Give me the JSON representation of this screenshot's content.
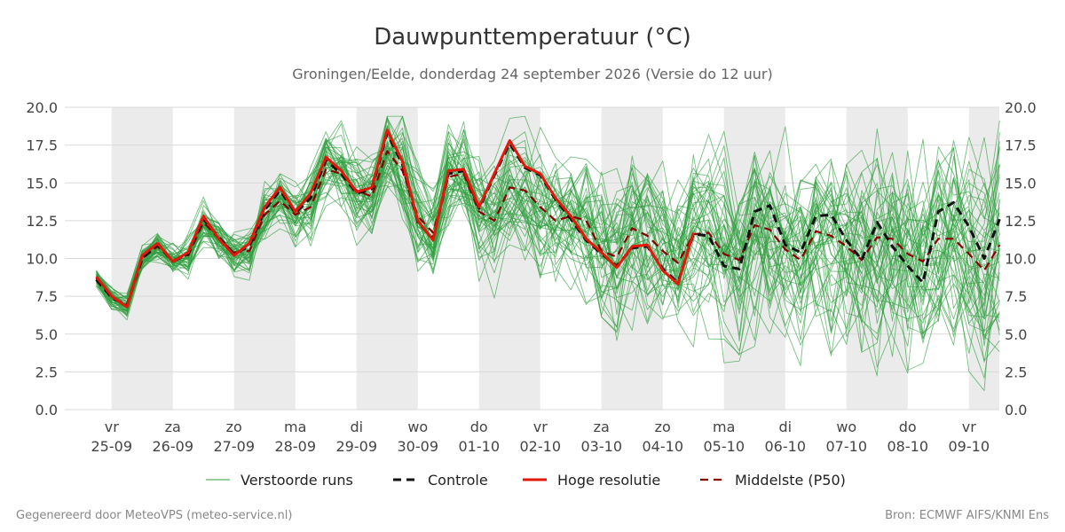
{
  "chart_data": {
    "type": "line",
    "title": "Dauwpunttemperatuur (°C)",
    "subtitle": "Groningen/Eelde, donderdag 24 september 2026 (Versie do 12 uur)",
    "ylim": [
      0,
      20
    ],
    "yticks": [
      "0.0",
      "2.5",
      "5.0",
      "7.5",
      "10.0",
      "12.5",
      "15.0",
      "17.5",
      "20.0"
    ],
    "grid": true,
    "x_unit_note": "x in dagen vanaf eerste tijdstap (stap 0.25)",
    "xticks": [
      {
        "day": "vr",
        "date": "25-09"
      },
      {
        "day": "za",
        "date": "26-09"
      },
      {
        "day": "zo",
        "date": "27-09"
      },
      {
        "day": "ma",
        "date": "28-09"
      },
      {
        "day": "di",
        "date": "29-09"
      },
      {
        "day": "wo",
        "date": "30-09"
      },
      {
        "day": "do",
        "date": "01-10"
      },
      {
        "day": "vr",
        "date": "02-10"
      },
      {
        "day": "za",
        "date": "03-10"
      },
      {
        "day": "zo",
        "date": "04-10"
      },
      {
        "day": "ma",
        "date": "05-10"
      },
      {
        "day": "di",
        "date": "06-10"
      },
      {
        "day": "wo",
        "date": "07-10"
      },
      {
        "day": "do",
        "date": "08-10"
      },
      {
        "day": "vr",
        "date": "09-10"
      }
    ],
    "legend": {
      "position": "bottom",
      "entries": [
        "Verstoorde runs",
        "Controle",
        "Hoge resolutie",
        "Middelste (P50)"
      ]
    },
    "series": [
      {
        "name": "Hoge resolutie",
        "color": "#e3170a",
        "style": "solid",
        "points": [
          [
            0,
            8.8
          ],
          [
            0.25,
            7.5
          ],
          [
            0.5,
            6.8
          ],
          [
            0.75,
            10.2
          ],
          [
            1,
            11.0
          ],
          [
            1.25,
            9.8
          ],
          [
            1.5,
            10.4
          ],
          [
            1.75,
            12.8
          ],
          [
            2,
            11.3
          ],
          [
            2.25,
            10.2
          ],
          [
            2.5,
            11.0
          ],
          [
            2.75,
            13.4
          ],
          [
            3,
            14.7
          ],
          [
            3.25,
            13.1
          ],
          [
            3.5,
            14.3
          ],
          [
            3.75,
            16.7
          ],
          [
            4,
            15.8
          ],
          [
            4.25,
            14.4
          ],
          [
            4.5,
            14.7
          ],
          [
            4.75,
            18.5
          ],
          [
            5,
            16.4
          ],
          [
            5.25,
            12.5
          ],
          [
            5.5,
            11.2
          ],
          [
            5.75,
            15.8
          ],
          [
            6,
            15.9
          ],
          [
            6.25,
            13.4
          ],
          [
            6.5,
            15.6
          ],
          [
            6.75,
            17.8
          ],
          [
            7,
            16.1
          ],
          [
            7.25,
            15.6
          ],
          [
            7.5,
            14.0
          ],
          [
            7.75,
            12.8
          ],
          [
            8,
            11.3
          ],
          [
            8.25,
            10.4
          ],
          [
            8.5,
            9.4
          ],
          [
            8.75,
            10.8
          ],
          [
            9,
            10.9
          ],
          [
            9.25,
            9.2
          ],
          [
            9.5,
            8.3
          ],
          [
            9.75,
            11.7
          ]
        ]
      },
      {
        "name": "Controle",
        "color": "#111111",
        "style": "dashed",
        "points": [
          [
            0,
            8.6
          ],
          [
            0.25,
            7.4
          ],
          [
            0.5,
            6.9
          ],
          [
            0.75,
            10.0
          ],
          [
            1,
            10.9
          ],
          [
            1.25,
            9.8
          ],
          [
            1.5,
            10.3
          ],
          [
            1.75,
            12.6
          ],
          [
            2,
            11.4
          ],
          [
            2.25,
            10.3
          ],
          [
            2.5,
            10.8
          ],
          [
            2.75,
            13.2
          ],
          [
            3,
            14.5
          ],
          [
            3.25,
            13.0
          ],
          [
            3.5,
            14.0
          ],
          [
            3.75,
            16.5
          ],
          [
            4,
            15.6
          ],
          [
            4.25,
            14.3
          ],
          [
            4.5,
            14.6
          ],
          [
            4.75,
            18.3
          ],
          [
            5,
            16.2
          ],
          [
            5.25,
            12.4
          ],
          [
            5.5,
            11.3
          ],
          [
            5.75,
            15.6
          ],
          [
            6,
            15.8
          ],
          [
            6.25,
            13.3
          ],
          [
            6.5,
            15.5
          ],
          [
            6.75,
            17.6
          ],
          [
            7,
            16.0
          ],
          [
            7.25,
            15.5
          ],
          [
            7.5,
            13.9
          ],
          [
            7.75,
            12.6
          ],
          [
            8,
            11.2
          ],
          [
            8.25,
            10.3
          ],
          [
            8.5,
            9.5
          ],
          [
            8.75,
            10.7
          ],
          [
            9,
            10.8
          ],
          [
            9.25,
            9.3
          ],
          [
            9.5,
            8.4
          ],
          [
            9.75,
            11.6
          ],
          [
            10,
            11.5
          ],
          [
            10.25,
            9.5
          ],
          [
            10.5,
            9.3
          ],
          [
            10.75,
            13.1
          ],
          [
            11,
            13.5
          ],
          [
            11.25,
            10.9
          ],
          [
            11.5,
            10.4
          ],
          [
            11.75,
            12.8
          ],
          [
            12,
            12.9
          ],
          [
            12.25,
            11.2
          ],
          [
            12.5,
            9.9
          ],
          [
            12.75,
            12.4
          ],
          [
            13,
            10.8
          ],
          [
            13.25,
            9.5
          ],
          [
            13.5,
            8.4
          ],
          [
            13.75,
            13.1
          ],
          [
            14,
            13.7
          ],
          [
            14.25,
            12.1
          ],
          [
            14.5,
            10.0
          ],
          [
            14.75,
            12.6
          ]
        ]
      },
      {
        "name": "Middelste (P50)",
        "color": "#8b0000",
        "style": "dashed",
        "points": [
          [
            0,
            8.7
          ],
          [
            0.25,
            7.4
          ],
          [
            0.5,
            6.9
          ],
          [
            0.75,
            10.0
          ],
          [
            1,
            10.8
          ],
          [
            1.25,
            9.9
          ],
          [
            1.5,
            10.2
          ],
          [
            1.75,
            12.4
          ],
          [
            2,
            11.3
          ],
          [
            2.25,
            10.4
          ],
          [
            2.5,
            10.5
          ],
          [
            2.75,
            12.9
          ],
          [
            3,
            13.8
          ],
          [
            3.25,
            12.9
          ],
          [
            3.5,
            13.4
          ],
          [
            3.75,
            15.9
          ],
          [
            4,
            15.6
          ],
          [
            4.25,
            14.5
          ],
          [
            4.5,
            14.1
          ],
          [
            4.75,
            17.1
          ],
          [
            5,
            15.8
          ],
          [
            5.25,
            12.8
          ],
          [
            5.5,
            11.7
          ],
          [
            5.75,
            15.4
          ],
          [
            6,
            15.6
          ],
          [
            6.25,
            13.1
          ],
          [
            6.5,
            12.5
          ],
          [
            6.75,
            14.7
          ],
          [
            7,
            14.5
          ],
          [
            7.25,
            13.4
          ],
          [
            7.5,
            12.5
          ],
          [
            7.75,
            12.8
          ],
          [
            8,
            12.5
          ],
          [
            8.25,
            10.5
          ],
          [
            8.5,
            10.1
          ],
          [
            8.75,
            12.0
          ],
          [
            9,
            11.5
          ],
          [
            9.25,
            10.5
          ],
          [
            9.5,
            9.7
          ],
          [
            9.75,
            11.6
          ],
          [
            10,
            11.7
          ],
          [
            10.25,
            10.3
          ],
          [
            10.5,
            9.9
          ],
          [
            10.75,
            12.2
          ],
          [
            11,
            11.9
          ],
          [
            11.25,
            10.6
          ],
          [
            11.5,
            9.9
          ],
          [
            11.75,
            11.8
          ],
          [
            12,
            11.5
          ],
          [
            12.25,
            10.8
          ],
          [
            12.5,
            9.9
          ],
          [
            12.75,
            11.4
          ],
          [
            13,
            11.3
          ],
          [
            13.25,
            10.3
          ],
          [
            13.5,
            9.8
          ],
          [
            13.75,
            11.3
          ],
          [
            14,
            11.3
          ],
          [
            14.25,
            10.3
          ],
          [
            14.5,
            9.2
          ],
          [
            14.75,
            10.9
          ]
        ]
      }
    ],
    "ensemble": {
      "name": "Verstoorde runs",
      "color": "#2e9e3e",
      "style": "solid",
      "members": 50,
      "summary": "50 leden rond de mediaan; spreiding neemt toe van ca. 1 °C (dag 0) tot ca. 5 °C (dag 14); uitschieters tot 19.0 en 1.6 °C"
    }
  },
  "footer": {
    "left": "Gegenereerd door MeteoVPS (meteo-service.nl)",
    "right": "Bron: ECMWF AIFS/KNMI Ens"
  }
}
